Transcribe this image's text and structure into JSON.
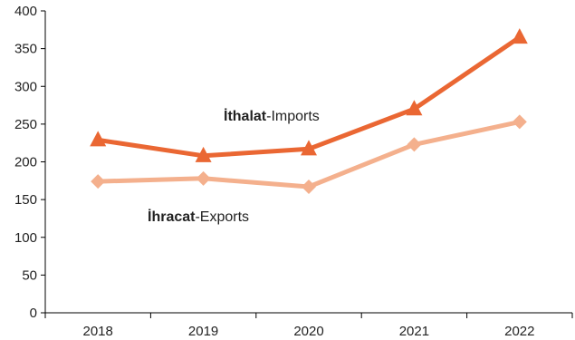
{
  "chart_data": {
    "type": "line",
    "title": "",
    "xlabel": "",
    "ylabel": "",
    "categories": [
      "2018",
      "2019",
      "2020",
      "2021",
      "2022"
    ],
    "ylim": [
      0,
      400
    ],
    "yticks": [
      0,
      50,
      100,
      150,
      200,
      250,
      300,
      350,
      400
    ],
    "grid": false,
    "series": [
      {
        "name_bold": "İthalat",
        "name_rest": "-Imports",
        "color": "#EA6733",
        "marker": "triangle",
        "values": [
          229,
          208,
          217,
          270,
          365
        ]
      },
      {
        "name_bold": "İhracat",
        "name_rest": "-Exports",
        "color": "#F4B08D",
        "marker": "diamond",
        "values": [
          174,
          178,
          167,
          223,
          253
        ]
      }
    ]
  }
}
